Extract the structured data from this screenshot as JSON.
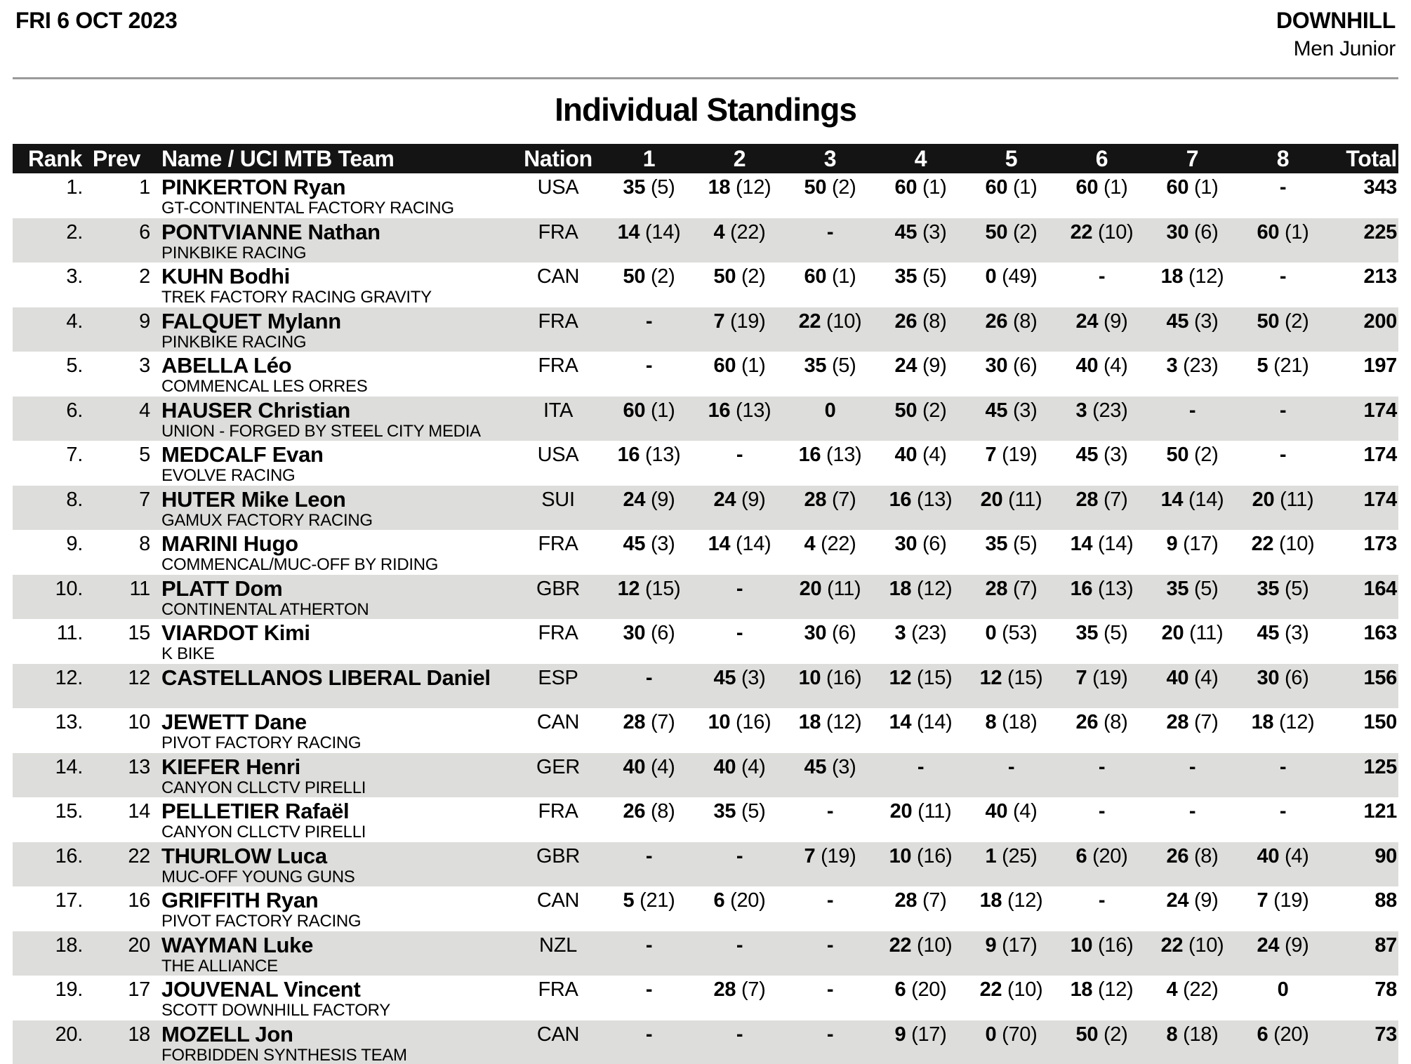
{
  "header": {
    "date": "FRI 6 OCT 2023",
    "discipline": "DOWNHILL",
    "category": "Men Junior"
  },
  "title": "Individual Standings",
  "table": {
    "columns": [
      "Rank",
      "Prev",
      "Name / UCI MTB Team",
      "Nation",
      "1",
      "2",
      "3",
      "4",
      "5",
      "6",
      "7",
      "8",
      "Total"
    ],
    "rows": [
      {
        "rank": "1.",
        "prev": "1",
        "name": "PINKERTON Ryan",
        "team": "GT-CONTINENTAL FACTORY RACING",
        "nation": "USA",
        "points": [
          "35 (5)",
          "18 (12)",
          "50 (2)",
          "60 (1)",
          "60 (1)",
          "60 (1)",
          "60 (1)",
          "-"
        ],
        "total": "343"
      },
      {
        "rank": "2.",
        "prev": "6",
        "name": "PONTVIANNE Nathan",
        "team": "PINKBIKE RACING",
        "nation": "FRA",
        "points": [
          "14 (14)",
          "4 (22)",
          "-",
          "45 (3)",
          "50 (2)",
          "22 (10)",
          "30 (6)",
          "60 (1)"
        ],
        "total": "225"
      },
      {
        "rank": "3.",
        "prev": "2",
        "name": "KUHN Bodhi",
        "team": "TREK FACTORY RACING GRAVITY",
        "nation": "CAN",
        "points": [
          "50 (2)",
          "50 (2)",
          "60 (1)",
          "35 (5)",
          "0 (49)",
          "-",
          "18 (12)",
          "-"
        ],
        "total": "213"
      },
      {
        "rank": "4.",
        "prev": "9",
        "name": "FALQUET Mylann",
        "team": "PINKBIKE RACING",
        "nation": "FRA",
        "points": [
          "-",
          "7 (19)",
          "22 (10)",
          "26 (8)",
          "26 (8)",
          "24 (9)",
          "45 (3)",
          "50 (2)"
        ],
        "total": "200"
      },
      {
        "rank": "5.",
        "prev": "3",
        "name": "ABELLA Léo",
        "team": "COMMENCAL LES ORRES",
        "nation": "FRA",
        "points": [
          "-",
          "60 (1)",
          "35 (5)",
          "24 (9)",
          "30 (6)",
          "40 (4)",
          "3 (23)",
          "5 (21)"
        ],
        "total": "197"
      },
      {
        "rank": "6.",
        "prev": "4",
        "name": "HAUSER Christian",
        "team": "UNION - FORGED BY STEEL CITY MEDIA",
        "nation": "ITA",
        "points": [
          "60 (1)",
          "16 (13)",
          "0",
          "50 (2)",
          "45 (3)",
          "3 (23)",
          "-",
          "-"
        ],
        "total": "174"
      },
      {
        "rank": "7.",
        "prev": "5",
        "name": "MEDCALF Evan",
        "team": "EVOLVE RACING",
        "nation": "USA",
        "points": [
          "16 (13)",
          "-",
          "16 (13)",
          "40 (4)",
          "7 (19)",
          "45 (3)",
          "50 (2)",
          "-"
        ],
        "total": "174"
      },
      {
        "rank": "8.",
        "prev": "7",
        "name": "HUTER Mike Leon",
        "team": "GAMUX FACTORY RACING",
        "nation": "SUI",
        "points": [
          "24 (9)",
          "24 (9)",
          "28 (7)",
          "16 (13)",
          "20 (11)",
          "28 (7)",
          "14 (14)",
          "20 (11)"
        ],
        "total": "174"
      },
      {
        "rank": "9.",
        "prev": "8",
        "name": "MARINI Hugo",
        "team": "COMMENCAL/MUC-OFF BY RIDING",
        "nation": "FRA",
        "points": [
          "45 (3)",
          "14 (14)",
          "4 (22)",
          "30 (6)",
          "35 (5)",
          "14 (14)",
          "9 (17)",
          "22 (10)"
        ],
        "total": "173"
      },
      {
        "rank": "10.",
        "prev": "11",
        "name": "PLATT Dom",
        "team": "CONTINENTAL ATHERTON",
        "nation": "GBR",
        "points": [
          "12 (15)",
          "-",
          "20 (11)",
          "18 (12)",
          "28 (7)",
          "16 (13)",
          "35 (5)",
          "35 (5)"
        ],
        "total": "164"
      },
      {
        "rank": "11.",
        "prev": "15",
        "name": "VIARDOT Kimi",
        "team": "K BIKE",
        "nation": "FRA",
        "points": [
          "30 (6)",
          "-",
          "30 (6)",
          "3 (23)",
          "0 (53)",
          "35 (5)",
          "20 (11)",
          "45 (3)"
        ],
        "total": "163"
      },
      {
        "rank": "12.",
        "prev": "12",
        "name": "CASTELLANOS LIBERAL Daniel",
        "team": "",
        "nation": "ESP",
        "points": [
          "-",
          "45 (3)",
          "10 (16)",
          "12 (15)",
          "12 (15)",
          "7 (19)",
          "40 (4)",
          "30 (6)"
        ],
        "total": "156"
      },
      {
        "rank": "13.",
        "prev": "10",
        "name": "JEWETT Dane",
        "team": "PIVOT FACTORY RACING",
        "nation": "CAN",
        "points": [
          "28 (7)",
          "10 (16)",
          "18 (12)",
          "14 (14)",
          "8 (18)",
          "26 (8)",
          "28 (7)",
          "18 (12)"
        ],
        "total": "150"
      },
      {
        "rank": "14.",
        "prev": "13",
        "name": "KIEFER Henri",
        "team": "CANYON CLLCTV PIRELLI",
        "nation": "GER",
        "points": [
          "40 (4)",
          "40 (4)",
          "45 (3)",
          "-",
          "-",
          "-",
          "-",
          "-"
        ],
        "total": "125"
      },
      {
        "rank": "15.",
        "prev": "14",
        "name": "PELLETIER Rafaël",
        "team": "CANYON CLLCTV PIRELLI",
        "nation": "FRA",
        "points": [
          "26 (8)",
          "35 (5)",
          "-",
          "20 (11)",
          "40 (4)",
          "-",
          "-",
          "-"
        ],
        "total": "121"
      },
      {
        "rank": "16.",
        "prev": "22",
        "name": "THURLOW Luca",
        "team": "MUC-OFF YOUNG GUNS",
        "nation": "GBR",
        "points": [
          "-",
          "-",
          "7 (19)",
          "10 (16)",
          "1 (25)",
          "6 (20)",
          "26 (8)",
          "40 (4)"
        ],
        "total": "90"
      },
      {
        "rank": "17.",
        "prev": "16",
        "name": "GRIFFITH Ryan",
        "team": "PIVOT FACTORY RACING",
        "nation": "CAN",
        "points": [
          "5 (21)",
          "6 (20)",
          "-",
          "28 (7)",
          "18 (12)",
          "-",
          "24 (9)",
          "7 (19)"
        ],
        "total": "88"
      },
      {
        "rank": "18.",
        "prev": "20",
        "name": "WAYMAN Luke",
        "team": "THE ALLIANCE",
        "nation": "NZL",
        "points": [
          "-",
          "-",
          "-",
          "22 (10)",
          "9 (17)",
          "10 (16)",
          "22 (10)",
          "24 (9)"
        ],
        "total": "87"
      },
      {
        "rank": "19.",
        "prev": "17",
        "name": "JOUVENAL Vincent",
        "team": "SCOTT DOWNHILL FACTORY",
        "nation": "FRA",
        "points": [
          "-",
          "28 (7)",
          "-",
          "6 (20)",
          "22 (10)",
          "18 (12)",
          "4 (22)",
          "0"
        ],
        "total": "78"
      },
      {
        "rank": "20.",
        "prev": "18",
        "name": "MOZELL Jon",
        "team": "FORBIDDEN SYNTHESIS TEAM",
        "nation": "CAN",
        "points": [
          "-",
          "-",
          "-",
          "9 (17)",
          "0 (70)",
          "50 (2)",
          "8 (18)",
          "6 (20)"
        ],
        "total": "73"
      }
    ]
  }
}
